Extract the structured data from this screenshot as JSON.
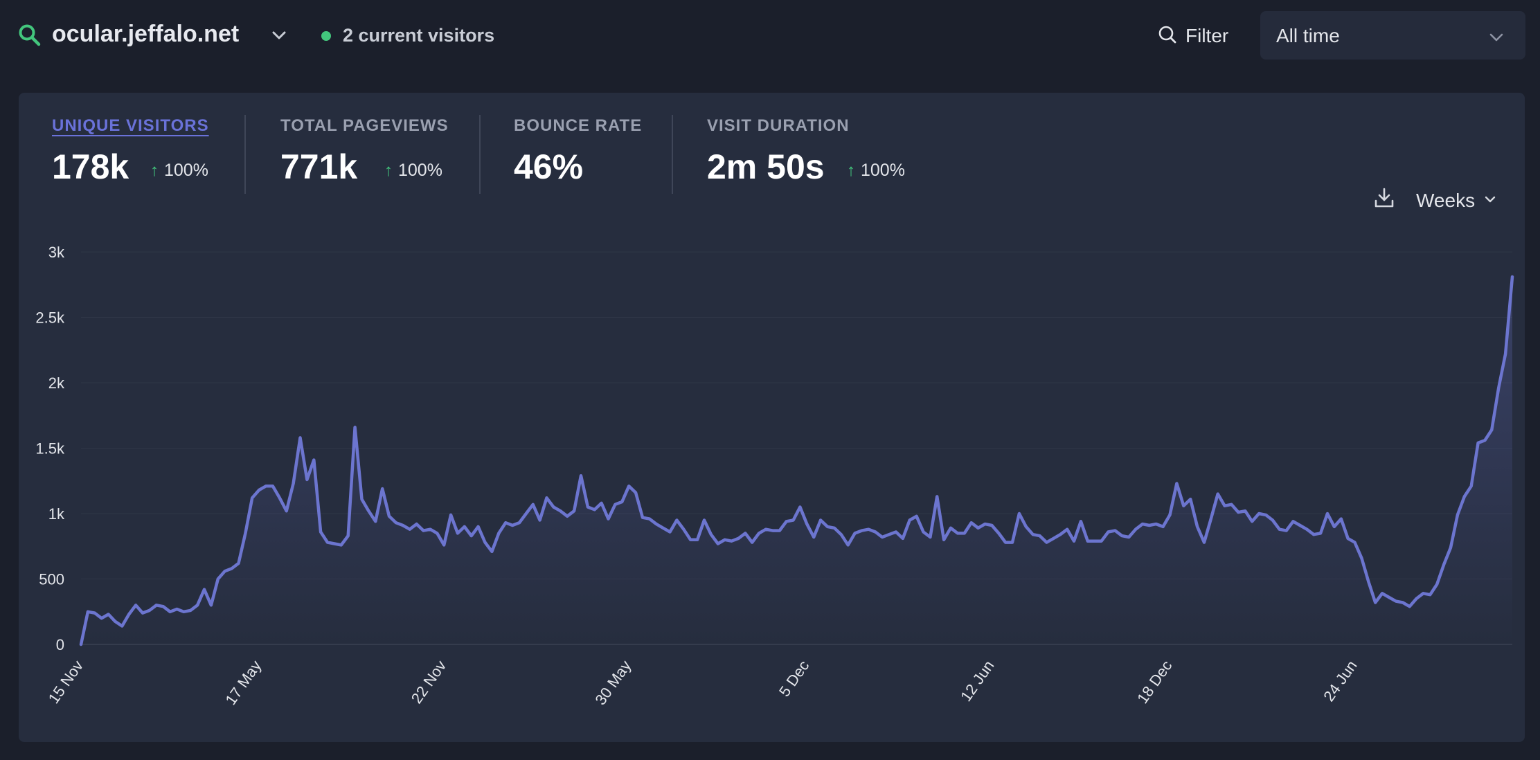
{
  "header": {
    "site": "ocular.jeffalo.net",
    "current_visitors": "2 current visitors",
    "filter_label": "Filter",
    "date_range": "All time"
  },
  "metrics": [
    {
      "label": "UNIQUE VISITORS",
      "value": "178k",
      "change": "100%",
      "active": true
    },
    {
      "label": "TOTAL PAGEVIEWS",
      "value": "771k",
      "change": "100%",
      "active": false
    },
    {
      "label": "BOUNCE RATE",
      "value": "46%",
      "change": "",
      "active": false
    },
    {
      "label": "VISIT DURATION",
      "value": "2m 50s",
      "change": "100%",
      "active": false
    }
  ],
  "controls": {
    "interval": "Weeks",
    "download_icon": "download-icon"
  },
  "colors": {
    "background": "#1b1f2b",
    "card": "#262d3e",
    "accent": "#6a72d9",
    "line": "#6c75cf",
    "positive": "#43c67d",
    "muted": "#9aa0b0"
  },
  "chart_data": {
    "type": "line",
    "ylim": [
      0,
      3000
    ],
    "yticks": [
      "0",
      "500",
      "1k",
      "1.5k",
      "2k",
      "2.5k",
      "3k"
    ],
    "ytick_values": [
      0,
      500,
      1000,
      1500,
      2000,
      2500,
      3000
    ],
    "xtick_labels": [
      "15 Nov",
      "17 May",
      "22 Nov",
      "30 May",
      "5 Dec",
      "12 Jun",
      "18 Dec",
      "24 Jun"
    ],
    "xtick_index": [
      0,
      26,
      53,
      80,
      106,
      133,
      159,
      186
    ],
    "grid": true,
    "series": [
      {
        "values": [
          0,
          250,
          240,
          200,
          230,
          175,
          140,
          230,
          300,
          240,
          260,
          300,
          290,
          250,
          270,
          250,
          260,
          300,
          420,
          300,
          500,
          560,
          580,
          620,
          850,
          1120,
          1180,
          1210,
          1210,
          1120,
          1020,
          1230,
          1580,
          1260,
          1410,
          860,
          780,
          770,
          760,
          830,
          1660,
          1110,
          1020,
          940,
          1190,
          980,
          930,
          910,
          880,
          920,
          870,
          880,
          850,
          760,
          990,
          850,
          900,
          830,
          900,
          780,
          710,
          850,
          930,
          910,
          930,
          1000,
          1070,
          950,
          1120,
          1050,
          1020,
          980,
          1020,
          1290,
          1050,
          1030,
          1080,
          960,
          1070,
          1090,
          1210,
          1160,
          970,
          960,
          920,
          890,
          860,
          950,
          880,
          800,
          800,
          950,
          840,
          770,
          800,
          790,
          810,
          850,
          780,
          850,
          880,
          870,
          870,
          940,
          950,
          1050,
          920,
          820,
          950,
          900,
          890,
          840,
          760,
          850,
          870,
          880,
          860,
          820,
          840,
          860,
          810,
          950,
          980,
          860,
          820,
          1130,
          800,
          890,
          850,
          850,
          930,
          890,
          920,
          910,
          850,
          780,
          780,
          1000,
          900,
          840,
          830,
          780,
          810,
          840,
          880,
          790,
          940,
          790,
          790,
          790,
          860,
          870,
          830,
          820,
          880,
          920,
          910,
          920,
          900,
          990,
          1230,
          1060,
          1110,
          900,
          780,
          960,
          1150,
          1060,
          1070,
          1010,
          1020,
          940,
          1000,
          990,
          950,
          880,
          870,
          940,
          910,
          880,
          840,
          850,
          1000,
          900,
          960,
          810,
          780,
          660,
          480,
          320,
          390,
          360,
          330,
          320,
          290,
          350,
          390,
          380,
          460,
          610,
          740,
          990,
          1130,
          1210,
          1540,
          1560,
          1640,
          1960,
          2220,
          2810
        ]
      }
    ]
  }
}
